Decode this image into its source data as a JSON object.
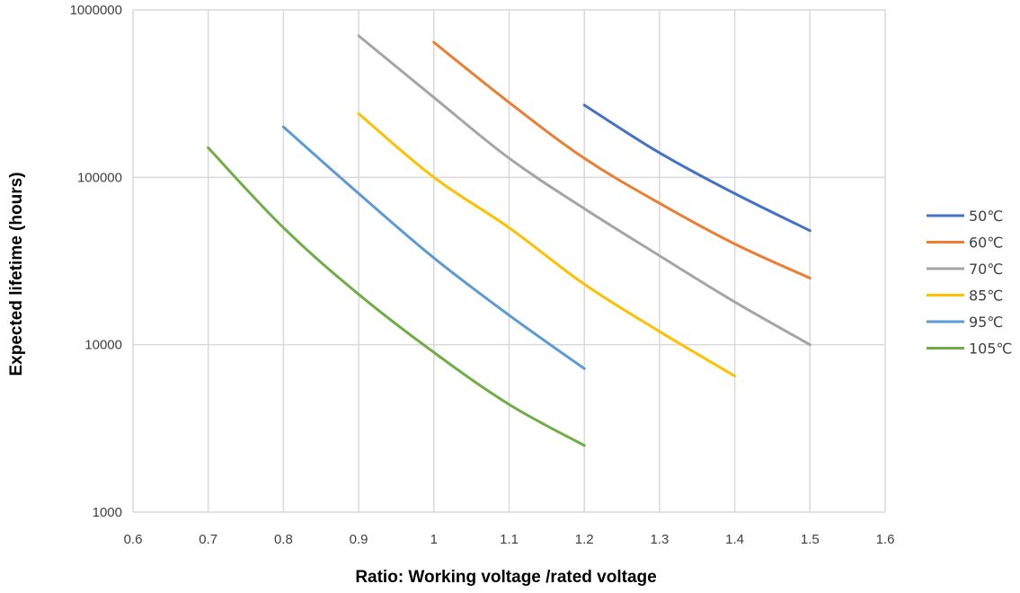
{
  "chart_data": {
    "type": "line",
    "title": "",
    "xlabel": "Ratio: Working voltage /rated voltage",
    "ylabel": "Expected lifetime (hours)",
    "xlim": [
      0.6,
      1.6
    ],
    "ylim": [
      1000,
      1000000
    ],
    "yscale": "log",
    "grid": true,
    "legend_position": "right",
    "x_ticks": [
      "0.6",
      "0.7",
      "0.8",
      "0.9",
      "1",
      "1.1",
      "1.2",
      "1.3",
      "1.4",
      "1.5",
      "1.6"
    ],
    "y_ticks": [
      "1000",
      "10000",
      "100000",
      "1000000"
    ],
    "series": [
      {
        "name": "50℃",
        "color": "#4472C4",
        "x": [
          1.2,
          1.3,
          1.4,
          1.5
        ],
        "y": [
          270000,
          140000,
          80000,
          48000
        ]
      },
      {
        "name": "60℃",
        "color": "#ED7D31",
        "x": [
          1.0,
          1.1,
          1.2,
          1.3,
          1.4,
          1.5
        ],
        "y": [
          640000,
          280000,
          130000,
          70000,
          40000,
          25000
        ]
      },
      {
        "name": "70℃",
        "color": "#A5A5A5",
        "x": [
          0.9,
          1.0,
          1.1,
          1.2,
          1.3,
          1.4,
          1.5
        ],
        "y": [
          700000,
          300000,
          130000,
          65000,
          34000,
          18000,
          10000
        ]
      },
      {
        "name": "85℃",
        "color": "#FFC000",
        "x": [
          0.9,
          1.0,
          1.1,
          1.2,
          1.3,
          1.4
        ],
        "y": [
          240000,
          100000,
          50000,
          23000,
          12000,
          6500
        ]
      },
      {
        "name": "95℃",
        "color": "#5B9BD5",
        "x": [
          0.8,
          0.9,
          1.0,
          1.1,
          1.2
        ],
        "y": [
          200000,
          80000,
          33000,
          15000,
          7200
        ]
      },
      {
        "name": "105℃",
        "color": "#70AD47",
        "x": [
          0.7,
          0.8,
          0.9,
          1.0,
          1.1,
          1.2
        ],
        "y": [
          150000,
          50000,
          20000,
          9000,
          4400,
          2500
        ]
      }
    ]
  }
}
